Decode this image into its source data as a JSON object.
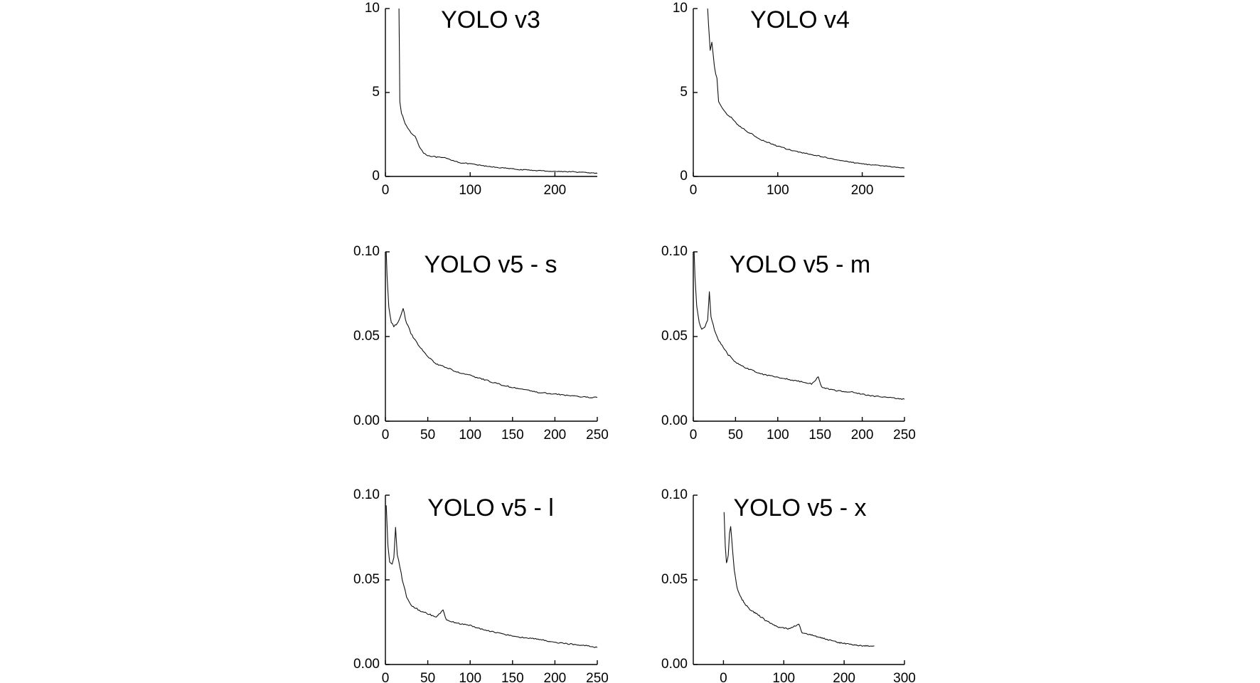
{
  "chart_data": [
    {
      "type": "line",
      "title": "YOLO v3",
      "xticks": [
        "0",
        "100",
        "200"
      ],
      "yticks": [
        "0",
        "5",
        "10"
      ],
      "xlim": [
        0,
        250
      ],
      "ylim": [
        0,
        10
      ],
      "series": [
        {
          "values": [
            [
              16,
              10.0
            ],
            [
              16.5,
              7.5
            ],
            [
              17,
              4.5
            ],
            [
              19,
              3.8
            ],
            [
              22,
              3.3
            ],
            [
              26,
              2.9
            ],
            [
              30,
              2.6
            ],
            [
              35,
              2.4
            ],
            [
              40,
              1.8
            ],
            [
              45,
              1.4
            ],
            [
              50,
              1.25
            ],
            [
              60,
              1.15
            ],
            [
              70,
              1.1
            ],
            [
              80,
              0.95
            ],
            [
              90,
              0.8
            ],
            [
              100,
              0.75
            ],
            [
              120,
              0.6
            ],
            [
              140,
              0.5
            ],
            [
              160,
              0.4
            ],
            [
              180,
              0.35
            ],
            [
              200,
              0.3
            ],
            [
              220,
              0.28
            ],
            [
              240,
              0.22
            ],
            [
              250,
              0.18
            ]
          ]
        }
      ]
    },
    {
      "type": "line",
      "title": "YOLO v4",
      "xticks": [
        "0",
        "100",
        "200"
      ],
      "yticks": [
        "0",
        "5",
        "10"
      ],
      "xlim": [
        0,
        250
      ],
      "ylim": [
        0,
        10
      ],
      "series": [
        {
          "values": [
            [
              17,
              10.0
            ],
            [
              18,
              9.0
            ],
            [
              20,
              7.5
            ],
            [
              22,
              8.0
            ],
            [
              25,
              6.5
            ],
            [
              28,
              5.8
            ],
            [
              30,
              4.5
            ],
            [
              35,
              4.0
            ],
            [
              40,
              3.7
            ],
            [
              45,
              3.5
            ],
            [
              50,
              3.2
            ],
            [
              60,
              2.8
            ],
            [
              70,
              2.5
            ],
            [
              80,
              2.2
            ],
            [
              90,
              2.0
            ],
            [
              100,
              1.8
            ],
            [
              120,
              1.5
            ],
            [
              140,
              1.3
            ],
            [
              160,
              1.1
            ],
            [
              180,
              0.9
            ],
            [
              200,
              0.75
            ],
            [
              220,
              0.65
            ],
            [
              240,
              0.55
            ],
            [
              250,
              0.5
            ]
          ]
        }
      ]
    },
    {
      "type": "line",
      "title": "YOLO v5 - s",
      "xticks": [
        "0",
        "50",
        "100",
        "150",
        "200",
        "250"
      ],
      "yticks": [
        "0.00",
        "0.05",
        "0.10"
      ],
      "xlim": [
        0,
        250
      ],
      "ylim": [
        0,
        0.1
      ],
      "series": [
        {
          "values": [
            [
              1,
              0.1
            ],
            [
              2,
              0.085
            ],
            [
              4,
              0.068
            ],
            [
              7,
              0.058
            ],
            [
              10,
              0.056
            ],
            [
              14,
              0.058
            ],
            [
              18,
              0.062
            ],
            [
              21,
              0.066
            ],
            [
              25,
              0.058
            ],
            [
              30,
              0.052
            ],
            [
              40,
              0.044
            ],
            [
              50,
              0.038
            ],
            [
              60,
              0.034
            ],
            [
              70,
              0.032
            ],
            [
              80,
              0.03
            ],
            [
              90,
              0.028
            ],
            [
              100,
              0.027
            ],
            [
              120,
              0.024
            ],
            [
              140,
              0.021
            ],
            [
              160,
              0.019
            ],
            [
              180,
              0.017
            ],
            [
              200,
              0.016
            ],
            [
              220,
              0.015
            ],
            [
              240,
              0.014
            ],
            [
              250,
              0.014
            ]
          ]
        }
      ]
    },
    {
      "type": "line",
      "title": "YOLO v5 - m",
      "xticks": [
        "0",
        "50",
        "100",
        "150",
        "200",
        "250"
      ],
      "yticks": [
        "0.00",
        "0.05",
        "0.10"
      ],
      "xlim": [
        0,
        250
      ],
      "ylim": [
        0,
        0.1
      ],
      "series": [
        {
          "values": [
            [
              1,
              0.1
            ],
            [
              2,
              0.085
            ],
            [
              4,
              0.068
            ],
            [
              7,
              0.058
            ],
            [
              10,
              0.054
            ],
            [
              14,
              0.056
            ],
            [
              17,
              0.06
            ],
            [
              19,
              0.077
            ],
            [
              21,
              0.062
            ],
            [
              25,
              0.054
            ],
            [
              30,
              0.048
            ],
            [
              40,
              0.04
            ],
            [
              50,
              0.035
            ],
            [
              60,
              0.032
            ],
            [
              70,
              0.03
            ],
            [
              80,
              0.028
            ],
            [
              100,
              0.026
            ],
            [
              120,
              0.024
            ],
            [
              140,
              0.022
            ],
            [
              148,
              0.026
            ],
            [
              152,
              0.02
            ],
            [
              170,
              0.018
            ],
            [
              190,
              0.017
            ],
            [
              210,
              0.015
            ],
            [
              230,
              0.014
            ],
            [
              250,
              0.013
            ]
          ]
        }
      ]
    },
    {
      "type": "line",
      "title": "YOLO v5 - l",
      "xticks": [
        "0",
        "50",
        "100",
        "150",
        "200",
        "250"
      ],
      "yticks": [
        "0.00",
        "0.05",
        "0.10"
      ],
      "xlim": [
        0,
        250
      ],
      "ylim": [
        0,
        0.1
      ],
      "series": [
        {
          "values": [
            [
              1,
              0.094
            ],
            [
              3,
              0.07
            ],
            [
              5,
              0.061
            ],
            [
              8,
              0.059
            ],
            [
              10,
              0.063
            ],
            [
              12,
              0.081
            ],
            [
              14,
              0.065
            ],
            [
              17,
              0.058
            ],
            [
              20,
              0.05
            ],
            [
              25,
              0.04
            ],
            [
              30,
              0.035
            ],
            [
              40,
              0.032
            ],
            [
              50,
              0.03
            ],
            [
              60,
              0.028
            ],
            [
              68,
              0.032
            ],
            [
              72,
              0.026
            ],
            [
              80,
              0.025
            ],
            [
              100,
              0.023
            ],
            [
              120,
              0.02
            ],
            [
              140,
              0.018
            ],
            [
              160,
              0.016
            ],
            [
              180,
              0.015
            ],
            [
              200,
              0.013
            ],
            [
              220,
              0.012
            ],
            [
              240,
              0.011
            ],
            [
              250,
              0.01
            ]
          ]
        }
      ]
    },
    {
      "type": "line",
      "title": "YOLO v5 - x",
      "xticks": [
        "0",
        "100",
        "200",
        "300"
      ],
      "yticks": [
        "0.00",
        "0.05",
        "0.10"
      ],
      "xlim": [
        -50,
        300
      ],
      "ylim": [
        0,
        0.1
      ],
      "series": [
        {
          "values": [
            [
              1,
              0.09
            ],
            [
              3,
              0.07
            ],
            [
              5,
              0.06
            ],
            [
              8,
              0.064
            ],
            [
              10,
              0.078
            ],
            [
              12,
              0.081
            ],
            [
              15,
              0.068
            ],
            [
              18,
              0.056
            ],
            [
              22,
              0.046
            ],
            [
              28,
              0.04
            ],
            [
              35,
              0.036
            ],
            [
              45,
              0.032
            ],
            [
              55,
              0.03
            ],
            [
              70,
              0.026
            ],
            [
              90,
              0.022
            ],
            [
              110,
              0.021
            ],
            [
              125,
              0.024
            ],
            [
              130,
              0.019
            ],
            [
              150,
              0.017
            ],
            [
              170,
              0.015
            ],
            [
              190,
              0.013
            ],
            [
              210,
              0.012
            ],
            [
              230,
              0.011
            ],
            [
              250,
              0.011
            ]
          ]
        }
      ]
    }
  ]
}
